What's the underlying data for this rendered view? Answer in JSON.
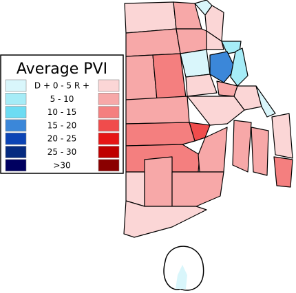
{
  "legend": {
    "title": "Average PVI",
    "rows": [
      {
        "label": "D + 0 - 5 R +",
        "d_color": "#d9f6fb",
        "r_color": "#fbd6d6"
      },
      {
        "label": "5 - 10",
        "d_color": "#a6ecf7",
        "r_color": "#f7a8a8"
      },
      {
        "label": "10 - 15",
        "d_color": "#6ddcf3",
        "r_color": "#f47f7f"
      },
      {
        "label": "15 - 20",
        "d_color": "#3b87d9",
        "r_color": "#f04c4c"
      },
      {
        "label": "20 - 25",
        "d_color": "#0c44b5",
        "r_color": "#e61616"
      },
      {
        "label": "25 - 30",
        "d_color": "#062b80",
        "r_color": "#bf0000"
      },
      {
        "label": ">30",
        "d_color": "#000060",
        "r_color": "#8a0000"
      }
    ]
  }
}
